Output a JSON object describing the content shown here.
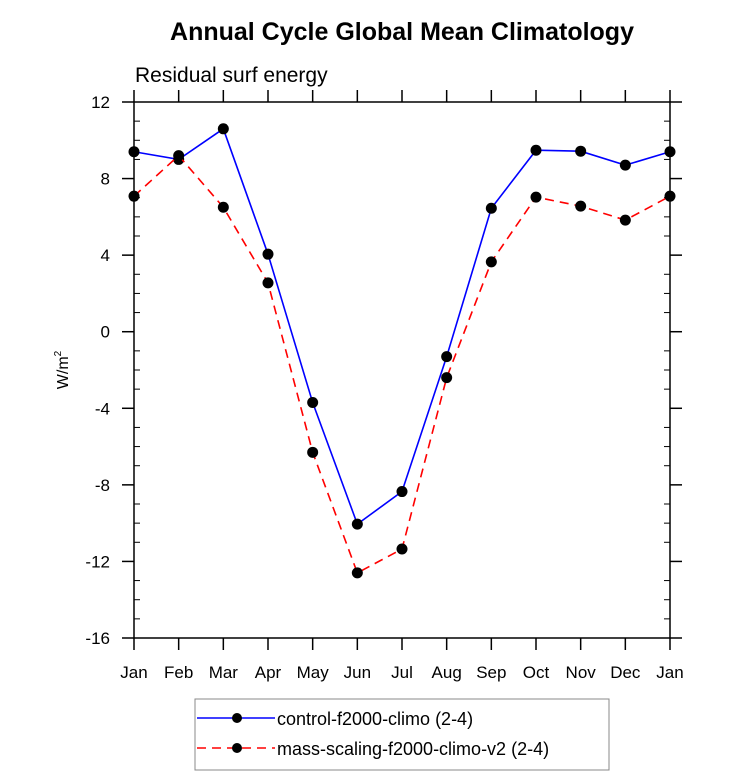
{
  "chart_data": {
    "type": "line",
    "title": "Annual Cycle Global Mean Climatology",
    "subtitle": "Residual surf energy",
    "xlabel": "",
    "ylabel": "W/m",
    "ylabel_sup": "2",
    "categories": [
      "Jan",
      "Feb",
      "Mar",
      "Apr",
      "May",
      "Jun",
      "Jul",
      "Aug",
      "Sep",
      "Oct",
      "Nov",
      "Dec",
      "Jan"
    ],
    "ylim": [
      -16,
      12
    ],
    "yticks": [
      -16,
      -12,
      -8,
      -4,
      0,
      4,
      8,
      12
    ],
    "ytick_labels": [
      "-16",
      "-12",
      "-8",
      "-4",
      "0",
      "4",
      "8",
      "12"
    ],
    "yminor_step": 1,
    "grid": false,
    "legend_position": "bottom-center",
    "series": [
      {
        "name": "control-f2000-climo (2-4)",
        "color": "#0000ff",
        "style": "solid",
        "marker": "filled-circle",
        "values": [
          9.4,
          9.0,
          10.6,
          4.05,
          -3.7,
          -10.05,
          -8.35,
          -1.3,
          6.45,
          9.48,
          9.43,
          8.7,
          9.4
        ]
      },
      {
        "name": "mass-scaling-f2000-climo-v2 (2-4)",
        "color": "#ff0000",
        "style": "dashed",
        "marker": "filled-circle",
        "values": [
          7.08,
          9.2,
          6.5,
          2.55,
          -6.3,
          -12.6,
          -11.35,
          -2.4,
          3.65,
          7.03,
          6.56,
          5.83,
          7.08
        ]
      }
    ]
  }
}
